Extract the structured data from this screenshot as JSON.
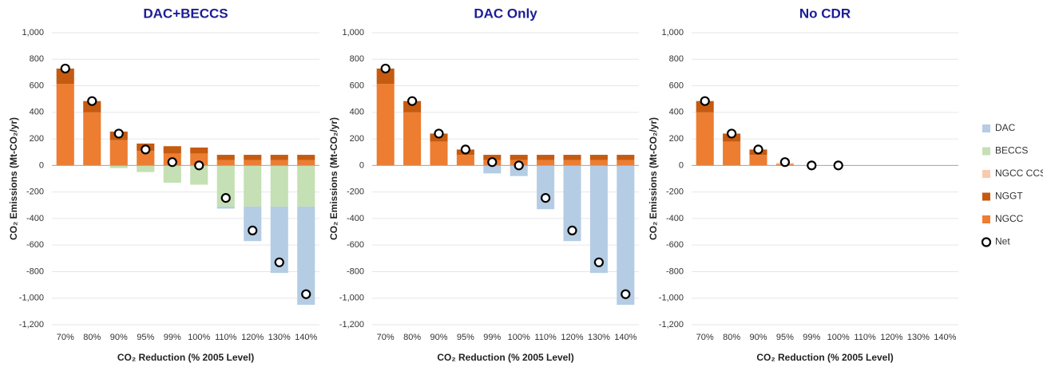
{
  "chart_data": [
    {
      "type": "bar",
      "stacked": true,
      "title": "DAC+BECCS",
      "ylabel": "CO₂ Emissions (Mt-CO₂/yr)",
      "xlabel": "CO₂ Reduction (% 2005 Level)",
      "categories": [
        "70%",
        "80%",
        "90%",
        "95%",
        "99%",
        "100%",
        "110%",
        "120%",
        "130%",
        "140%"
      ],
      "ylim": [
        -1200,
        1000
      ],
      "yticks": [
        {
          "value": -1200,
          "label": "-1,200"
        },
        {
          "value": -1000,
          "label": "-1,000"
        },
        -800,
        -600,
        -400,
        -200,
        0,
        200,
        400,
        600,
        800,
        {
          "value": 1000,
          "label": "1,000"
        }
      ],
      "grid": true,
      "series": [
        {
          "name": "NGCC",
          "color": "#ed7d31",
          "values": [
            615,
            400,
            190,
            110,
            90,
            90,
            40,
            40,
            40,
            40
          ]
        },
        {
          "name": "NGGT",
          "color": "#c55a11",
          "values": [
            115,
            85,
            65,
            55,
            55,
            45,
            40,
            40,
            40,
            40
          ]
        },
        {
          "name": "NGCC CCS",
          "color": "#f8cbad",
          "values": [
            0,
            0,
            0,
            0,
            0,
            0,
            0,
            0,
            0,
            0
          ]
        },
        {
          "name": "BECCS",
          "color": "#c5e0b4",
          "values": [
            0,
            0,
            -20,
            -50,
            -130,
            -145,
            -310,
            -310,
            -310,
            -310
          ]
        },
        {
          "name": "DAC",
          "color": "#b4cde4",
          "values": [
            0,
            0,
            0,
            0,
            0,
            0,
            -15,
            -260,
            -500,
            -740
          ]
        },
        {
          "name": "Net",
          "color": "#000000",
          "type": "scatter",
          "values": [
            730,
            485,
            240,
            120,
            25,
            0,
            -245,
            -490,
            -730,
            -970
          ]
        }
      ]
    },
    {
      "type": "bar",
      "stacked": true,
      "title": "DAC Only",
      "ylabel": "CO₂ Emissions (Mt-CO₂/yr)",
      "xlabel": "CO₂ Reduction (% 2005 Level)",
      "categories": [
        "70%",
        "80%",
        "90%",
        "95%",
        "99%",
        "100%",
        "110%",
        "120%",
        "130%",
        "140%"
      ],
      "ylim": [
        -1200,
        1000
      ],
      "yticks": [
        {
          "value": -1200,
          "label": "-1,200"
        },
        {
          "value": -1000,
          "label": "-1,000"
        },
        -800,
        -600,
        -400,
        -200,
        0,
        200,
        400,
        600,
        800,
        {
          "value": 1000,
          "label": "1,000"
        }
      ],
      "grid": true,
      "series": [
        {
          "name": "NGCC",
          "color": "#ed7d31",
          "values": [
            615,
            400,
            180,
            80,
            40,
            40,
            40,
            40,
            40,
            40
          ]
        },
        {
          "name": "NGGT",
          "color": "#c55a11",
          "values": [
            115,
            85,
            60,
            40,
            40,
            40,
            40,
            40,
            40,
            40
          ]
        },
        {
          "name": "NGCC CCS",
          "color": "#f8cbad",
          "values": [
            0,
            0,
            0,
            0,
            0,
            0,
            0,
            0,
            0,
            0
          ]
        },
        {
          "name": "BECCS",
          "color": "#c5e0b4",
          "values": [
            0,
            0,
            0,
            0,
            0,
            0,
            0,
            0,
            0,
            0
          ]
        },
        {
          "name": "DAC",
          "color": "#b4cde4",
          "values": [
            0,
            0,
            0,
            0,
            -60,
            -80,
            -330,
            -570,
            -810,
            -1050
          ]
        },
        {
          "name": "Net",
          "color": "#000000",
          "type": "scatter",
          "values": [
            730,
            485,
            240,
            120,
            25,
            0,
            -245,
            -490,
            -730,
            -970
          ]
        }
      ]
    },
    {
      "type": "bar",
      "stacked": true,
      "title": "No CDR",
      "legend": "right",
      "ylabel": "CO₂ Emissions (Mt-CO₂/yr)",
      "xlabel": "CO₂ Reduction (% 2005 Level)",
      "categories": [
        "70%",
        "80%",
        "90%",
        "95%",
        "99%",
        "100%",
        "110%",
        "120%",
        "130%",
        "140%"
      ],
      "ylim": [
        -1200,
        1000
      ],
      "yticks": [
        {
          "value": -1200,
          "label": "-1,200"
        },
        {
          "value": -1000,
          "label": "-1,000"
        },
        -800,
        -600,
        -400,
        -200,
        0,
        200,
        400,
        600,
        800,
        {
          "value": 1000,
          "label": "1,000"
        }
      ],
      "grid": true,
      "series": [
        {
          "name": "NGCC",
          "color": "#ed7d31",
          "values": [
            400,
            180,
            80,
            10,
            0,
            0,
            null,
            null,
            null,
            null
          ]
        },
        {
          "name": "NGGT",
          "color": "#c55a11",
          "values": [
            85,
            60,
            40,
            0,
            0,
            0,
            null,
            null,
            null,
            null
          ]
        },
        {
          "name": "NGCC CCS",
          "color": "#f8cbad",
          "values": [
            0,
            0,
            0,
            10,
            0,
            0,
            null,
            null,
            null,
            null
          ]
        },
        {
          "name": "BECCS",
          "color": "#c5e0b4",
          "values": [
            0,
            0,
            0,
            0,
            0,
            0,
            null,
            null,
            null,
            null
          ]
        },
        {
          "name": "DAC",
          "color": "#b4cde4",
          "values": [
            0,
            0,
            0,
            0,
            0,
            0,
            null,
            null,
            null,
            null
          ]
        },
        {
          "name": "Net",
          "color": "#000000",
          "type": "scatter",
          "values": [
            485,
            240,
            120,
            25,
            0,
            0,
            null,
            null,
            null,
            null
          ]
        }
      ]
    }
  ]
}
